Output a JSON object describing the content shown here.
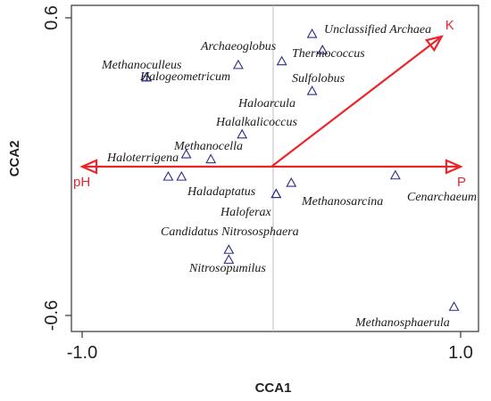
{
  "chart_data": {
    "type": "scatter",
    "title": "",
    "xlabel": "CCA1",
    "ylabel": "CCA2",
    "xlim": [
      -1.0,
      1.0
    ],
    "ylim": [
      -0.6,
      0.6
    ],
    "x_ticks": [
      "-1.0",
      "1.0"
    ],
    "y_ticks": [
      "0.6",
      "-0.6"
    ],
    "marker": "triangle",
    "marker_color": "#2b2b8c",
    "vector_color": "#e8262b",
    "points": [
      {
        "name": "Unclassified Archaea",
        "x": 0.215,
        "y": 0.535
      },
      {
        "name": "Thermococcus",
        "x": 0.27,
        "y": 0.47
      },
      {
        "name": "Archaeoglobus",
        "x": -0.175,
        "y": 0.41
      },
      {
        "name": "Methanoculleus",
        "x": -0.66,
        "y": 0.36
      },
      {
        "name": "Halogeometricum",
        "x": -0.66,
        "y": 0.36
      },
      {
        "name": "Sulfolobus",
        "x": 0.055,
        "y": 0.425
      },
      {
        "name": "Sulfolobus",
        "x": 0.215,
        "y": 0.305
      },
      {
        "name": "Haloarcula",
        "x": -0.155,
        "y": 0.13
      },
      {
        "name": "Halalkalicoccus",
        "x": -0.32,
        "y": 0.03
      },
      {
        "name": "Methanocella",
        "x": -0.45,
        "y": 0.05
      },
      {
        "name": "Haloterrigena",
        "x": -0.545,
        "y": -0.04
      },
      {
        "name": "",
        "x": -0.475,
        "y": -0.04
      },
      {
        "name": "Haladaptatus",
        "x": 0.025,
        "y": -0.11
      },
      {
        "name": "Methanosarcina",
        "x": 0.105,
        "y": -0.065
      },
      {
        "name": "Cenarchaeum",
        "x": 0.655,
        "y": -0.035
      },
      {
        "name": "Haloferax",
        "x": 0.025,
        "y": -0.11
      },
      {
        "name": "Candidatus Nitrososphaera",
        "x": -0.225,
        "y": -0.335
      },
      {
        "name": "Nitrosopumilus",
        "x": -0.225,
        "y": -0.375
      },
      {
        "name": "Methanosphaerula",
        "x": 0.965,
        "y": -0.565
      }
    ],
    "vectors": [
      {
        "name": "K",
        "x": 0.9,
        "y": 0.525
      },
      {
        "name": "pH",
        "x": -1.0,
        "y": 0.0
      },
      {
        "name": "P",
        "x": 1.0,
        "y": 0.0
      }
    ]
  }
}
